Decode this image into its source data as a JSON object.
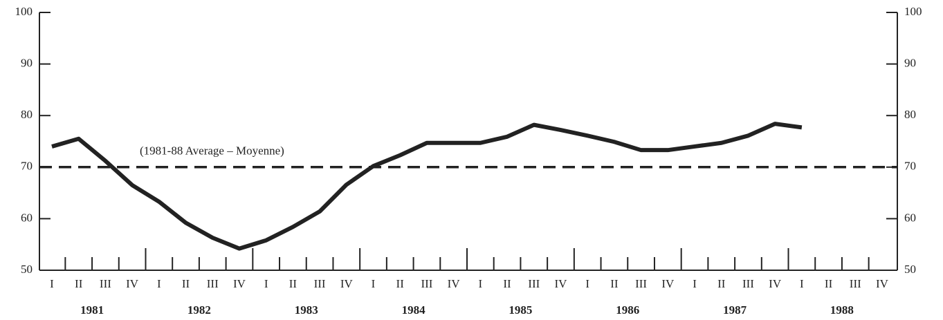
{
  "chart_data": {
    "type": "line",
    "categories": [
      "I",
      "II",
      "III",
      "IV",
      "I",
      "II",
      "III",
      "IV",
      "I",
      "II",
      "III",
      "IV",
      "I",
      "II",
      "III",
      "IV",
      "I",
      "II",
      "III",
      "IV",
      "I",
      "II",
      "III",
      "IV",
      "I",
      "II",
      "III",
      "IV",
      "I",
      "II",
      "III",
      "IV"
    ],
    "year_labels": [
      "1981",
      "1982",
      "1983",
      "1984",
      "1985",
      "1986",
      "1987",
      "1988"
    ],
    "series": [
      {
        "color": "#222222",
        "values": [
          74.0,
          75.5,
          71.2,
          66.5,
          63.3,
          59.2,
          56.3,
          54.2,
          55.8,
          58.4,
          61.4,
          66.6,
          70.2,
          72.3,
          74.7,
          74.7,
          74.7,
          75.9,
          78.2,
          77.2,
          76.1,
          74.9,
          73.3,
          73.3,
          74.0,
          74.7,
          76.1,
          78.4,
          77.7,
          null,
          null,
          null
        ]
      }
    ],
    "reference_line": {
      "value": 70,
      "label": "(1981-88 Average – Moyenne)"
    },
    "ylim": [
      50,
      100
    ],
    "yticks": [
      50,
      60,
      70,
      80,
      90,
      100
    ],
    "y2lim": [
      50,
      100
    ],
    "y2ticks": [
      50,
      60,
      70,
      80,
      90,
      100
    ]
  }
}
